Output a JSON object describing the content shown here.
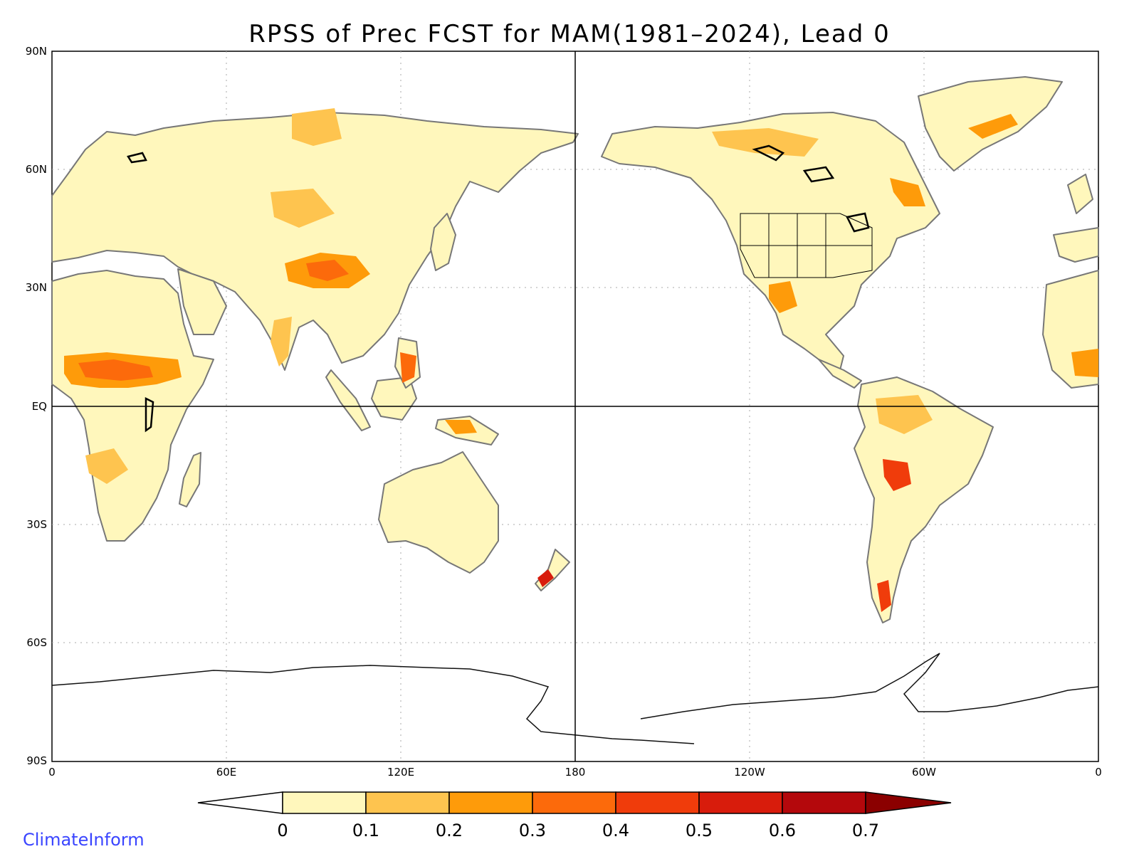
{
  "title": "RPSS of Prec FCST for MAM(1981–2024), Lead 0",
  "credit": "ClimateInform",
  "axes": {
    "y_ticks": [
      "90N",
      "60N",
      "30N",
      "EQ",
      "30S",
      "60S",
      "90S"
    ],
    "x_ticks": [
      "0",
      "60E",
      "120E",
      "180",
      "120W",
      "60W",
      "0"
    ]
  },
  "colorbar": {
    "labels": [
      "0",
      "0.1",
      "0.2",
      "0.3",
      "0.4",
      "0.5",
      "0.6",
      "0.7"
    ],
    "colors": [
      "#fff7bc",
      "#fec44f",
      "#fe9b0a",
      "#fc6a0b",
      "#f03c0b",
      "#d81c0c",
      "#b4080c"
    ],
    "under_color": "#ffffff",
    "over_color": "#8b0000"
  },
  "map_colors": {
    "land_outline": "#777777",
    "lakes": "#000000",
    "grid": "#aaaaaa"
  }
}
